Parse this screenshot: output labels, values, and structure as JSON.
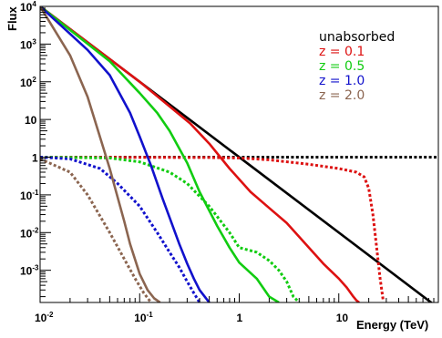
{
  "chart_data": {
    "type": "line",
    "title": "",
    "xlabel": "Energy (TeV)",
    "ylabel": "Flux",
    "x_scale": "log",
    "y_scale": "log",
    "xlim": [
      0.01,
      100
    ],
    "ylim": [
      0.00014,
      10000
    ],
    "grid": false,
    "legend_position": "top-right",
    "x_ticks": [
      {
        "value": 0.01,
        "base": "10",
        "exp": "-2"
      },
      {
        "value": 0.1,
        "base": "10",
        "exp": "-1"
      },
      {
        "value": 1,
        "base": "1",
        "exp": ""
      },
      {
        "value": 10,
        "base": "10",
        "exp": ""
      }
    ],
    "y_ticks": [
      {
        "value": 0.001,
        "base": "10",
        "exp": "-3"
      },
      {
        "value": 0.01,
        "base": "10",
        "exp": "-2"
      },
      {
        "value": 0.1,
        "base": "10",
        "exp": "-1"
      },
      {
        "value": 1,
        "base": "1",
        "exp": ""
      },
      {
        "value": 10,
        "base": "10",
        "exp": ""
      },
      {
        "value": 100,
        "base": "10",
        "exp": "2"
      },
      {
        "value": 1000,
        "base": "10",
        "exp": "3"
      },
      {
        "value": 10000,
        "base": "10",
        "exp": "4"
      }
    ],
    "series": [
      {
        "name": "unabsorbed",
        "color": "#000000",
        "style": "solid",
        "x": [
          0.01,
          100
        ],
        "y": [
          10000,
          0.0001
        ]
      },
      {
        "name": "unabsorbed",
        "color": "#000000",
        "style": "dotted",
        "x": [
          0.01,
          100
        ],
        "y": [
          1,
          1
        ]
      },
      {
        "name": "z = 0.1",
        "color": "#dd1111",
        "style": "solid",
        "x": [
          0.01,
          0.1,
          0.32,
          0.5,
          0.8,
          1.3,
          2,
          3,
          5,
          7,
          10,
          12,
          14,
          15,
          16
        ],
        "y": [
          10000,
          100,
          8,
          2.3,
          0.5,
          0.12,
          0.045,
          0.018,
          0.004,
          0.0015,
          0.0006,
          0.00035,
          0.0002,
          0.00016,
          0.00014
        ]
      },
      {
        "name": "z = 0.1",
        "color": "#dd1111",
        "style": "dotted",
        "x": [
          0.01,
          0.5,
          1,
          2,
          5,
          10,
          15,
          18,
          20,
          22,
          24,
          26,
          28
        ],
        "y": [
          1,
          0.98,
          0.95,
          0.85,
          0.65,
          0.5,
          0.4,
          0.3,
          0.15,
          0.03,
          0.004,
          0.0006,
          0.00015
        ]
      },
      {
        "name": "z = 0.5",
        "color": "#11cc11",
        "style": "solid",
        "x": [
          0.01,
          0.05,
          0.1,
          0.15,
          0.2,
          0.3,
          0.4,
          0.6,
          0.8,
          1,
          1.5,
          2,
          2.5
        ],
        "y": [
          10000,
          350,
          50,
          15,
          5,
          0.7,
          0.12,
          0.015,
          0.004,
          0.0016,
          0.0006,
          0.0002,
          0.00014
        ]
      },
      {
        "name": "z = 0.5",
        "color": "#11cc11",
        "style": "dotted",
        "x": [
          0.01,
          0.05,
          0.1,
          0.2,
          0.3,
          0.5,
          0.8,
          1,
          1.5,
          2,
          2.5,
          3,
          3.5,
          4
        ],
        "y": [
          1,
          0.95,
          0.75,
          0.4,
          0.2,
          0.05,
          0.01,
          0.004,
          0.003,
          0.0018,
          0.001,
          0.0005,
          0.0002,
          0.00014
        ]
      },
      {
        "name": "z = 1.0",
        "color": "#1111cc",
        "style": "solid",
        "x": [
          0.01,
          0.03,
          0.05,
          0.08,
          0.1,
          0.13,
          0.17,
          0.2,
          0.25,
          0.3,
          0.35,
          0.4,
          0.45,
          0.5
        ],
        "y": [
          10000,
          700,
          150,
          15,
          3.5,
          0.6,
          0.08,
          0.025,
          0.005,
          0.0015,
          0.0006,
          0.0003,
          0.0002,
          0.00014
        ]
      },
      {
        "name": "z = 1.0",
        "color": "#1111cc",
        "style": "dotted",
        "x": [
          0.01,
          0.02,
          0.04,
          0.06,
          0.1,
          0.15,
          0.2,
          0.25,
          0.3,
          0.35,
          0.4
        ],
        "y": [
          1,
          0.9,
          0.5,
          0.2,
          0.05,
          0.01,
          0.003,
          0.0012,
          0.0005,
          0.00025,
          0.00014
        ]
      },
      {
        "name": "z = 2.0",
        "color": "#8b6550",
        "style": "solid",
        "x": [
          0.01,
          0.02,
          0.03,
          0.05,
          0.07,
          0.08,
          0.1,
          0.12,
          0.14,
          0.16
        ],
        "y": [
          10000,
          500,
          40,
          0.5,
          0.02,
          0.005,
          0.0008,
          0.0003,
          0.00018,
          0.00014
        ]
      },
      {
        "name": "z = 2.0",
        "color": "#8b6550",
        "style": "dotted",
        "x": [
          0.01,
          0.02,
          0.03,
          0.05,
          0.07,
          0.09,
          0.11,
          0.13
        ],
        "y": [
          0.9,
          0.4,
          0.1,
          0.01,
          0.002,
          0.0006,
          0.00025,
          0.00014
        ]
      }
    ]
  },
  "legend": [
    {
      "label": "unabsorbed",
      "color": "#000000"
    },
    {
      "label": "z = 0.1",
      "color": "#dd1111"
    },
    {
      "label": "z = 0.5",
      "color": "#11cc11"
    },
    {
      "label": "z = 1.0",
      "color": "#1111cc"
    },
    {
      "label": "z = 2.0",
      "color": "#8b6550"
    }
  ]
}
